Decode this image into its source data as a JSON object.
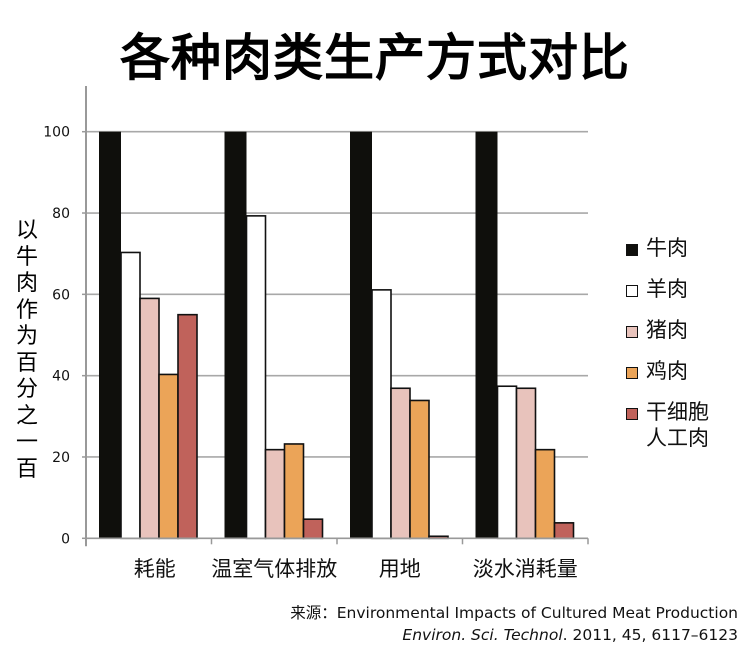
{
  "chart_data": {
    "type": "bar",
    "title": "各种肉类生产方式对比",
    "ylabel": "以牛肉作为百分之一百",
    "xlabel": "",
    "ylim": [
      0,
      100
    ],
    "yticks": [
      0,
      20,
      40,
      60,
      80,
      100
    ],
    "grid": true,
    "legend_position": "right",
    "categories": [
      "耗能",
      "温室气体排放",
      "用地",
      "淡水消耗量"
    ],
    "series": [
      {
        "name": "牛肉",
        "color": "#0f0f0c",
        "values": [
          100,
          100,
          100,
          100
        ]
      },
      {
        "name": "羊肉",
        "color": "#ffffff",
        "values": [
          70.3,
          79.3,
          61.1,
          37.4
        ]
      },
      {
        "name": "猪肉",
        "color": "#e8c3bc",
        "values": [
          59,
          21.8,
          36.9,
          36.9
        ]
      },
      {
        "name": "鸡肉",
        "color": "#eba458",
        "values": [
          40.3,
          23.2,
          33.9,
          21.8
        ]
      },
      {
        "name": "干细胞\n人工肉",
        "color": "#c0625b",
        "values": [
          55,
          4.7,
          0.5,
          3.8
        ]
      }
    ]
  },
  "source": {
    "line1": "来源：Environmental Impacts of Cultured Meat Production",
    "journal": "Environ. Sci. Technol",
    "details": ". 2011, 45, 6117–6123"
  }
}
